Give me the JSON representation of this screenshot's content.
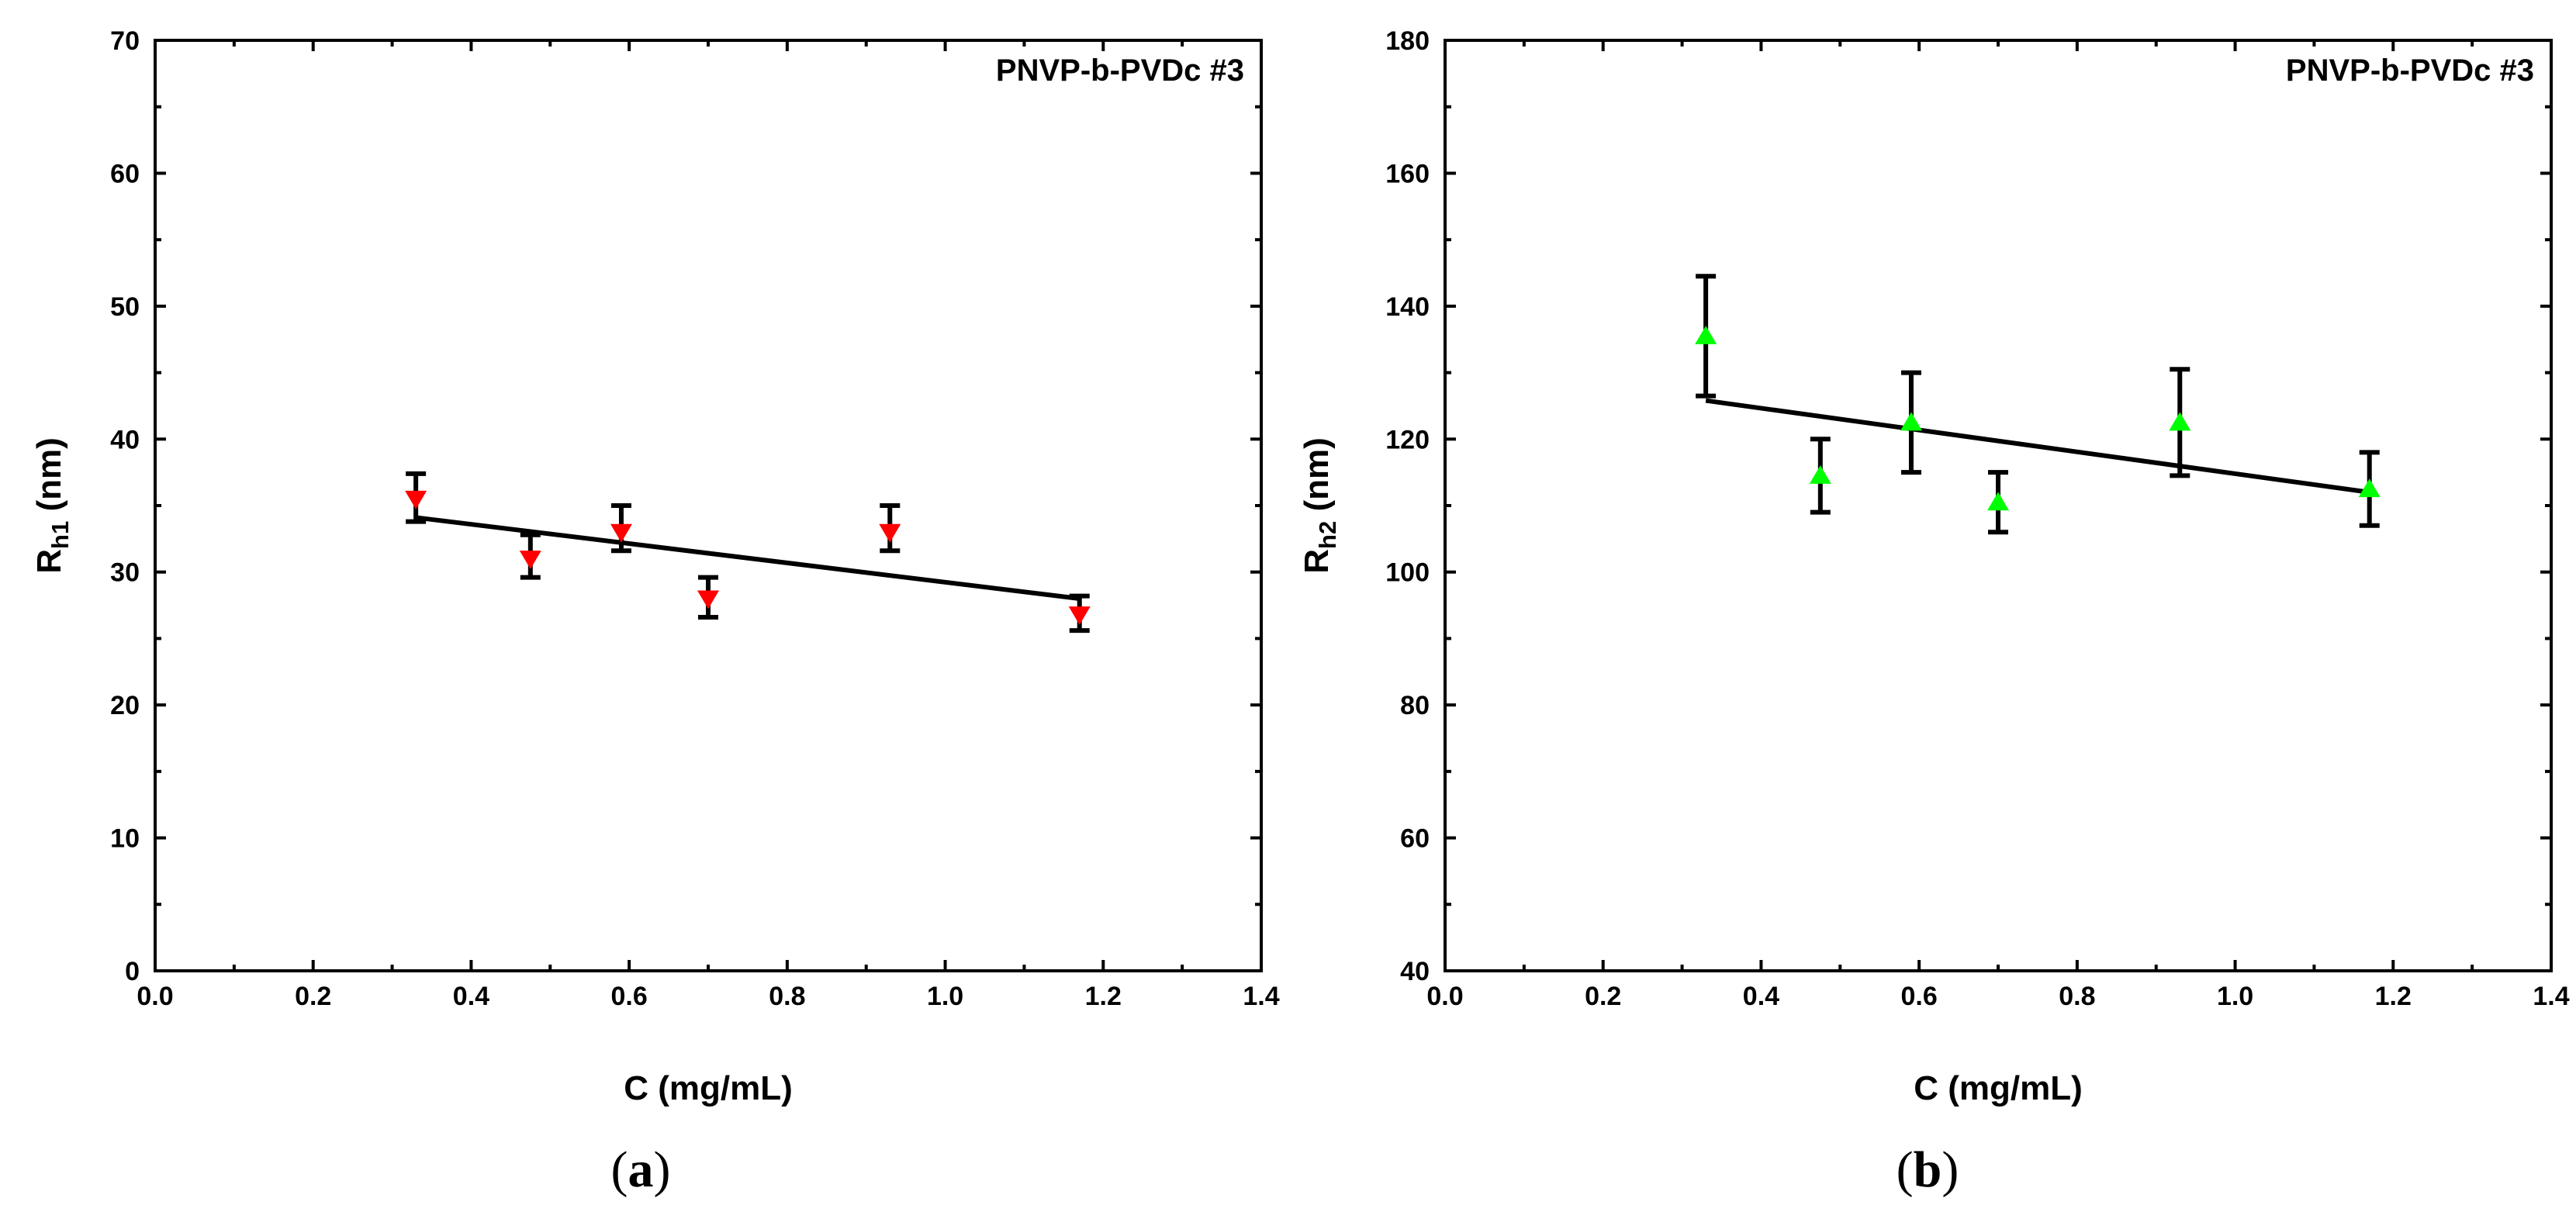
{
  "chart_data": [
    {
      "panel": "a",
      "type": "scatter",
      "caption_open": "(",
      "caption_letter": "a",
      "caption_close": ")",
      "annotation": "PNVP-b-PVDc #3",
      "xlabel": "C (mg/mL)",
      "ylabel_main": "R",
      "ylabel_sub": "h1",
      "ylabel_unit": " (nm)",
      "xlim": [
        0,
        1.4
      ],
      "ylim": [
        0,
        70
      ],
      "xticks": [
        0.0,
        0.2,
        0.4,
        0.6,
        0.8,
        1.0,
        1.2,
        1.4
      ],
      "xtick_labels": [
        "0.0",
        "0.2",
        "0.4",
        "0.6",
        "0.8",
        "1.0",
        "1.2",
        "1.4"
      ],
      "yticks": [
        0,
        10,
        20,
        30,
        40,
        50,
        60,
        70
      ],
      "ytick_labels": [
        "0",
        "10",
        "20",
        "30",
        "40",
        "50",
        "60",
        "70"
      ],
      "marker": "triangle-down",
      "marker_color": "#ff0000",
      "series": [
        {
          "name": "Rh1",
          "x": [
            0.33,
            0.475,
            0.59,
            0.7,
            0.93,
            1.17
          ],
          "y": [
            35.5,
            31.0,
            33.0,
            28.0,
            33.0,
            26.8
          ],
          "err_low": [
            33.8,
            29.6,
            31.6,
            26.6,
            31.6,
            25.6
          ],
          "err_high": [
            37.4,
            32.8,
            35.0,
            29.6,
            35.0,
            28.2
          ]
        }
      ],
      "fit_line": {
        "x": [
          0.33,
          1.17
        ],
        "y": [
          34.1,
          28.0
        ]
      }
    },
    {
      "panel": "b",
      "type": "scatter",
      "caption_open": "(",
      "caption_letter": "b",
      "caption_close": ")",
      "annotation": "PNVP-b-PVDc #3",
      "xlabel": "C (mg/mL)",
      "ylabel_main": "R",
      "ylabel_sub": "h2",
      "ylabel_unit": " (nm)",
      "xlim": [
        0,
        1.4
      ],
      "ylim": [
        40,
        180
      ],
      "xticks": [
        0.0,
        0.2,
        0.4,
        0.6,
        0.8,
        1.0,
        1.2,
        1.4
      ],
      "xtick_labels": [
        "0.0",
        "0.2",
        "0.4",
        "0.6",
        "0.8",
        "1.0",
        "1.2",
        "1.4"
      ],
      "yticks": [
        40,
        60,
        80,
        100,
        120,
        140,
        160,
        180
      ],
      "ytick_labels": [
        "40",
        "60",
        "80",
        "100",
        "120",
        "140",
        "160",
        "180"
      ],
      "marker": "triangle-up",
      "marker_color": "#00ff00",
      "series": [
        {
          "name": "Rh2",
          "x": [
            0.33,
            0.475,
            0.59,
            0.7,
            0.93,
            1.17
          ],
          "y": [
            135.5,
            114.5,
            122.5,
            110.5,
            122.5,
            112.5
          ],
          "err_low": [
            126.5,
            109.0,
            115.0,
            106.0,
            114.5,
            107.0
          ],
          "err_high": [
            144.5,
            120.0,
            130.0,
            115.0,
            130.5,
            118.0
          ]
        }
      ],
      "fit_line": {
        "x": [
          0.33,
          1.17
        ],
        "y": [
          125.8,
          112.0
        ]
      }
    }
  ]
}
